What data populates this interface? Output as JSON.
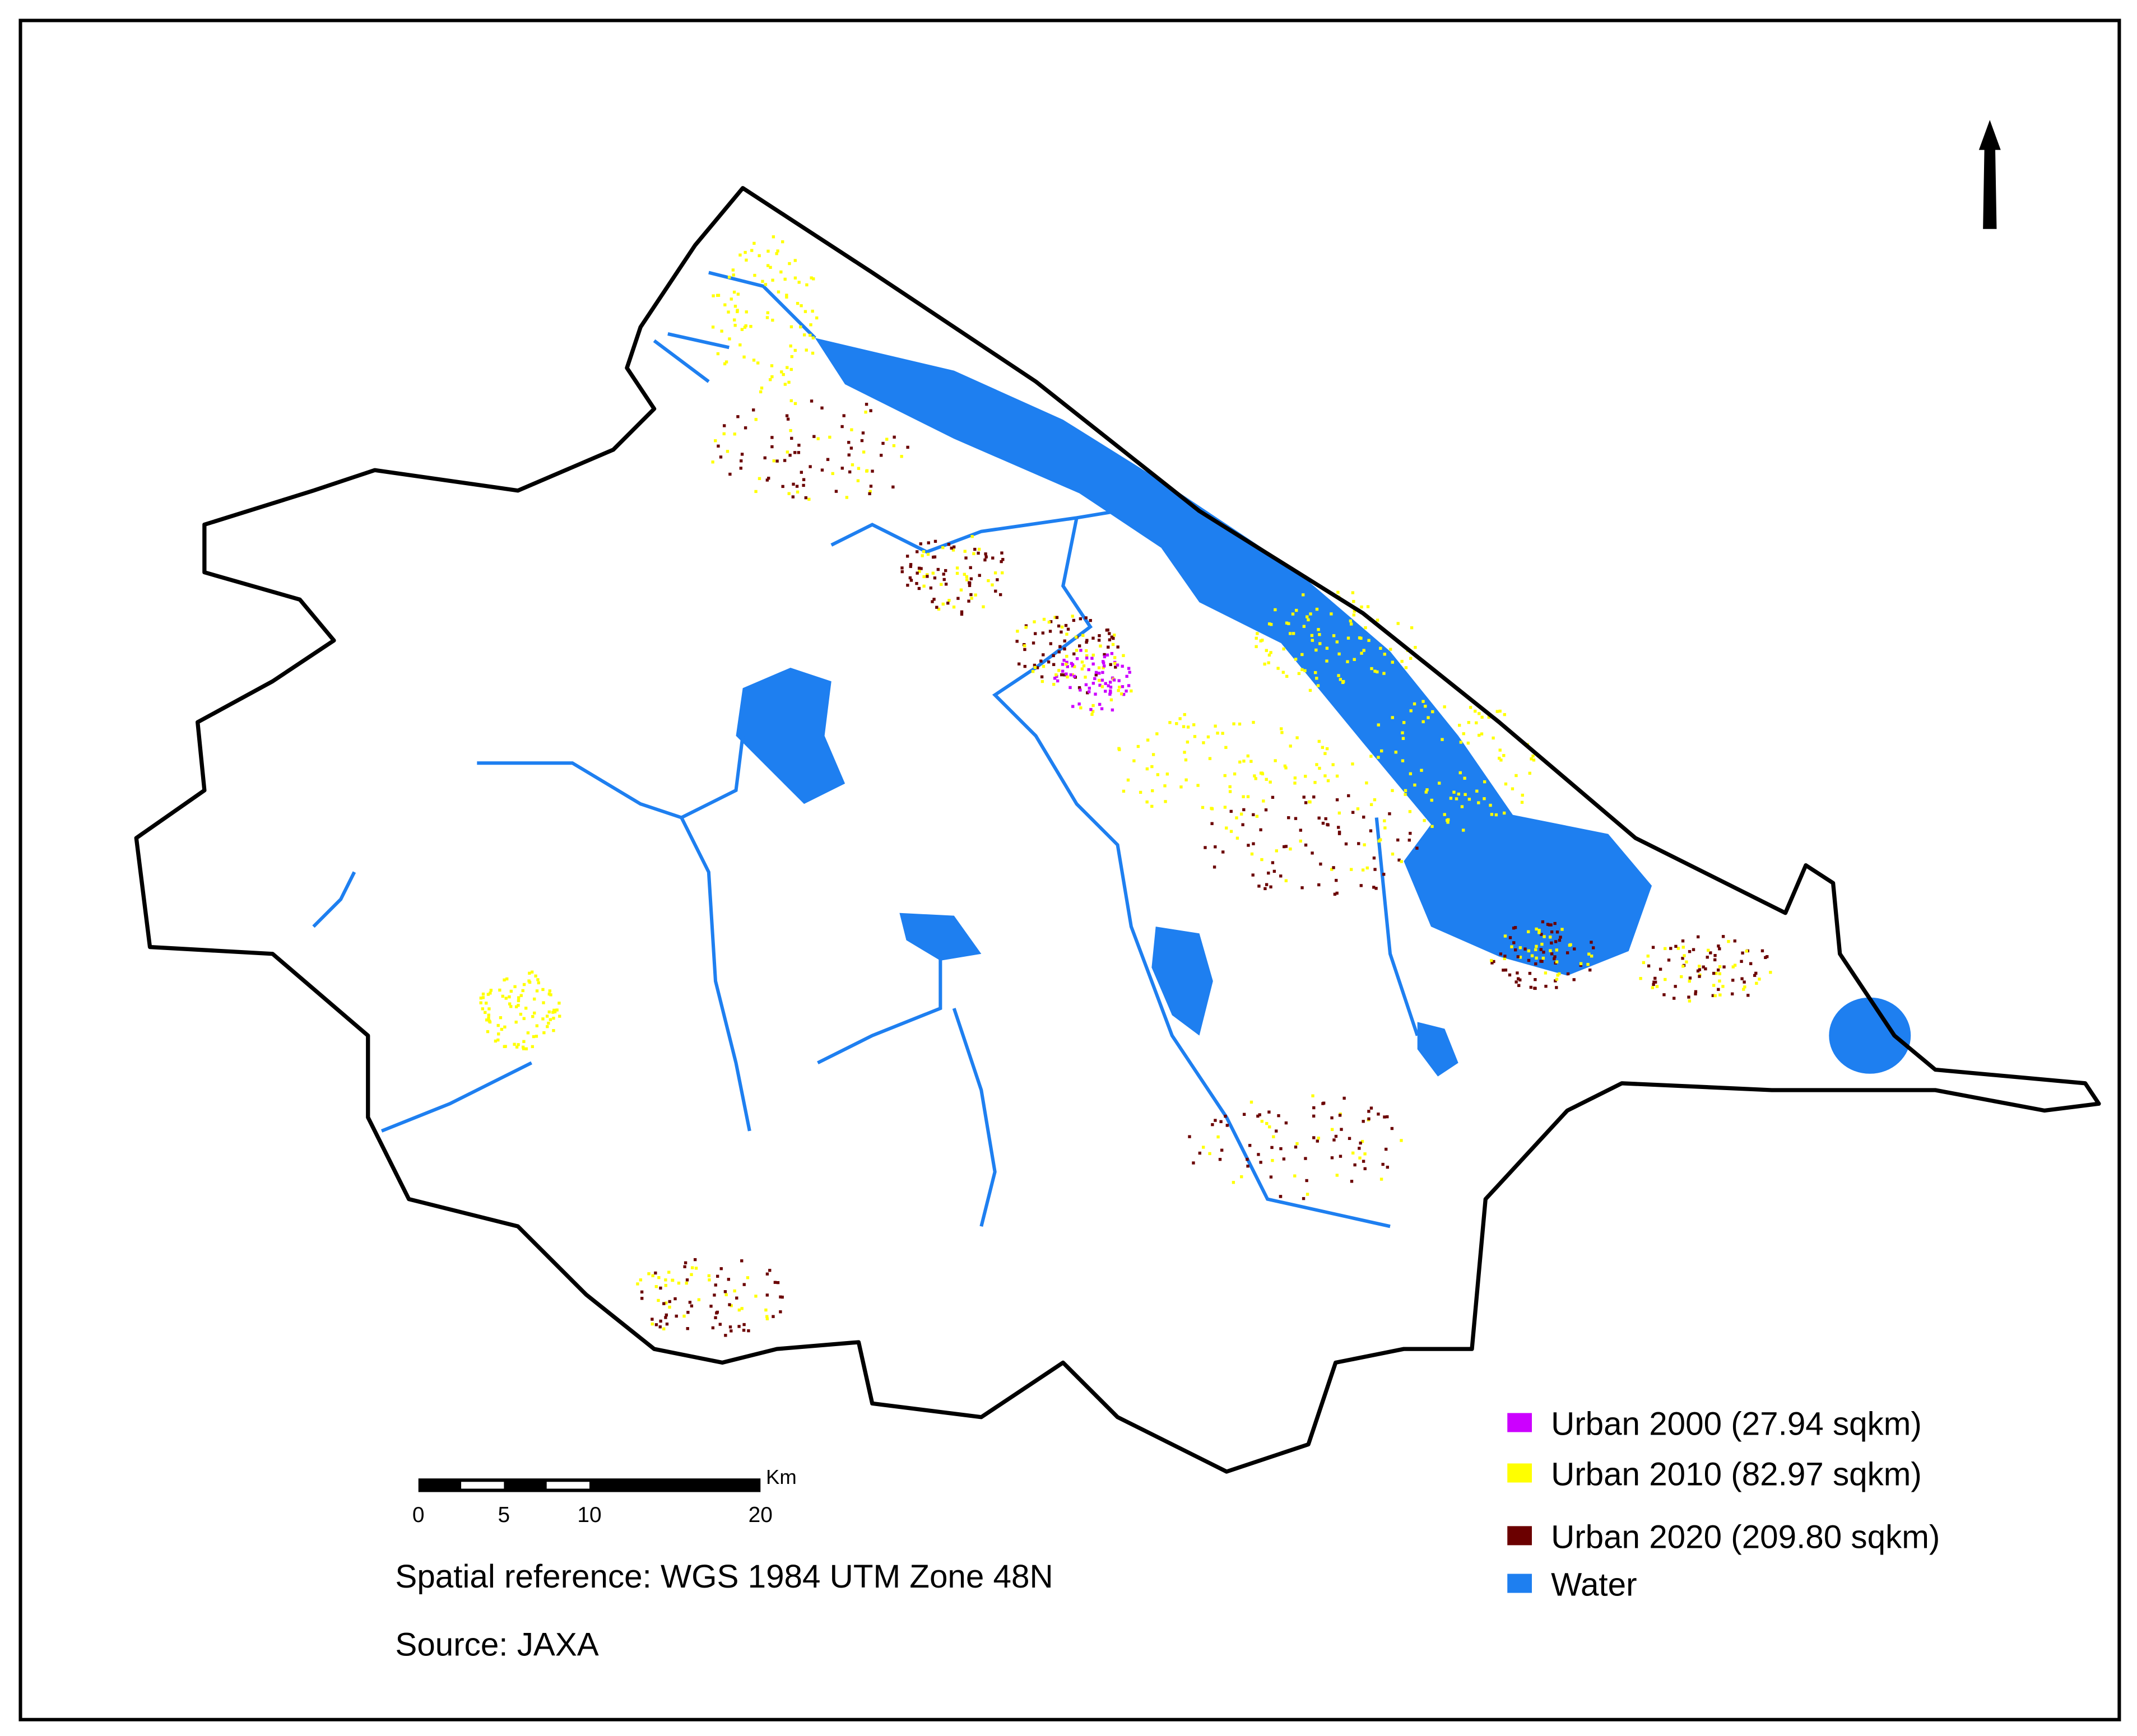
{
  "legend": {
    "items": [
      {
        "label": "Urban 2000 (27.94 sqkm)",
        "color": "#cc00ff"
      },
      {
        "label": "Urban 2010 (82.97 sqkm)",
        "color": "#ffff00"
      },
      {
        "label": "Urban 2020 (209.80 sqkm)",
        "color": "#6b0000"
      },
      {
        "label": "Water",
        "color": "#1e7ff0"
      }
    ]
  },
  "scale_bar": {
    "unit": "Km",
    "ticks": [
      0,
      5,
      10,
      20
    ]
  },
  "notes": {
    "spatial_reference": "Spatial reference:  WGS 1984 UTM Zone 48N",
    "source": "Source: JAXA"
  }
}
